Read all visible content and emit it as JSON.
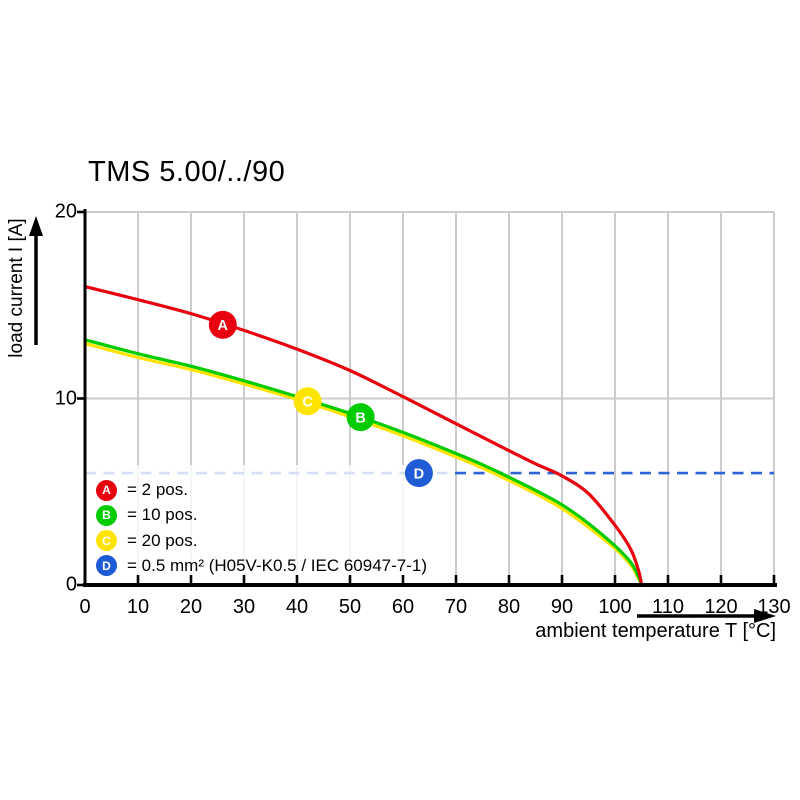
{
  "title": "TMS 5.00/../90",
  "colors": {
    "red": "#e8000e",
    "green": "#00cc00",
    "yellow": "#ffe400",
    "blue": "#1e5bd4",
    "dash_blue": "#2e63d6",
    "grid": "#cccccc",
    "axis": "#000000",
    "legend_bg_opacity": "0.8"
  },
  "chart_data": {
    "type": "line",
    "title": "TMS 5.00/../90",
    "xlabel": "ambient temperature T [°C]",
    "ylabel": "load current I [A]",
    "xlim": [
      0,
      130
    ],
    "ylim": [
      0,
      20
    ],
    "x_ticks": [
      0,
      10,
      20,
      30,
      40,
      50,
      60,
      70,
      80,
      90,
      100,
      110,
      120,
      130
    ],
    "y_ticks": [
      0,
      10,
      20
    ],
    "grid": {
      "vertical_every": 10,
      "horizontal_lines": [
        10,
        20
      ],
      "right_border": 130
    },
    "legend_position": "inside-bottom-left",
    "series": [
      {
        "id": "C",
        "name": "20 pos.",
        "color_key": "yellow",
        "points": [
          [
            0,
            12.95
          ],
          [
            10,
            12.2
          ],
          [
            20,
            11.55
          ],
          [
            30,
            10.78
          ],
          [
            40,
            9.95
          ],
          [
            50,
            9.02
          ],
          [
            60,
            8.0
          ],
          [
            70,
            6.87
          ],
          [
            75,
            6.27
          ],
          [
            80,
            5.6
          ],
          [
            85,
            4.9
          ],
          [
            90,
            4.1
          ],
          [
            95,
            3.1
          ],
          [
            100,
            1.95
          ],
          [
            103,
            1.05
          ],
          [
            104.5,
            0.3
          ],
          [
            105,
            0
          ]
        ],
        "marker": {
          "x": 42,
          "y": 9.85,
          "letter": "C"
        }
      },
      {
        "id": "B",
        "name": "10 pos.",
        "color_key": "green",
        "points": [
          [
            0,
            13.15
          ],
          [
            10,
            12.4
          ],
          [
            20,
            11.73
          ],
          [
            30,
            10.95
          ],
          [
            40,
            10.1
          ],
          [
            50,
            9.2
          ],
          [
            60,
            8.18
          ],
          [
            70,
            7.05
          ],
          [
            75,
            6.45
          ],
          [
            80,
            5.78
          ],
          [
            85,
            5.08
          ],
          [
            90,
            4.3
          ],
          [
            95,
            3.3
          ],
          [
            100,
            2.1
          ],
          [
            103,
            1.2
          ],
          [
            104.5,
            0.4
          ],
          [
            105,
            0
          ]
        ],
        "marker": {
          "x": 52,
          "y": 9.0,
          "letter": "B"
        }
      },
      {
        "id": "A",
        "name": "2 pos.",
        "color_key": "red",
        "points": [
          [
            0,
            16
          ],
          [
            10,
            15.3
          ],
          [
            20,
            14.55
          ],
          [
            30,
            13.65
          ],
          [
            40,
            12.65
          ],
          [
            50,
            11.5
          ],
          [
            60,
            10.1
          ],
          [
            70,
            8.65
          ],
          [
            80,
            7.2
          ],
          [
            85,
            6.5
          ],
          [
            90,
            5.85
          ],
          [
            95,
            4.9
          ],
          [
            100,
            3.2
          ],
          [
            103,
            1.9
          ],
          [
            104.5,
            0.7
          ],
          [
            105,
            0
          ]
        ],
        "marker": {
          "x": 26,
          "y": 13.95,
          "letter": "A"
        }
      }
    ],
    "reference_line": {
      "id": "D",
      "y": 6,
      "style": "dashed",
      "color_key": "dash_blue",
      "name": "0.5 mm² (H05V-K0.5 / IEC 60947-7-1)",
      "marker": {
        "x": 63,
        "y": 6,
        "letter": "D"
      }
    }
  },
  "legend": {
    "items": [
      {
        "letter": "A",
        "color_key": "red",
        "text": "= 2 pos."
      },
      {
        "letter": "B",
        "color_key": "green",
        "text": "= 10 pos."
      },
      {
        "letter": "C",
        "color_key": "yellow",
        "text": "= 20 pos."
      },
      {
        "letter": "D",
        "color_key": "blue",
        "text": "= 0.5 mm² (H05V-K0.5 / IEC 60947-7-1)"
      }
    ]
  }
}
